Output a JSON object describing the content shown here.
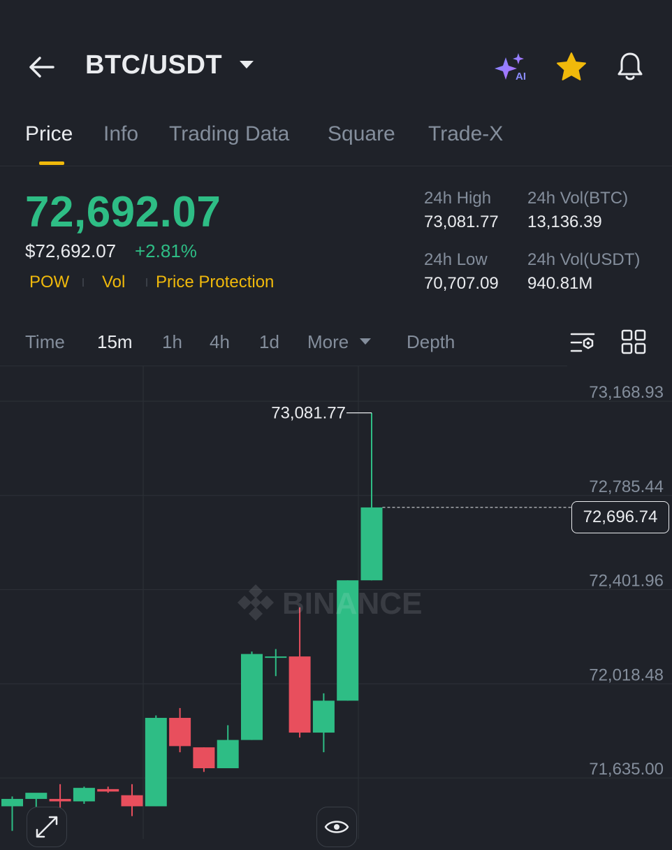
{
  "header": {
    "pair": "BTC/USDT",
    "icons": [
      "back-arrow-icon",
      "ai-sparkle-icon",
      "star-icon",
      "bell-icon"
    ],
    "ai_badge": "AI"
  },
  "tabs": [
    {
      "label": "Price",
      "active": true
    },
    {
      "label": "Info",
      "active": false
    },
    {
      "label": "Trading Data",
      "active": false
    },
    {
      "label": "Square",
      "active": false
    },
    {
      "label": "Trade-X",
      "active": false
    }
  ],
  "price": {
    "last": "72,692.07",
    "usd": "$72,692.07",
    "change": "+2.81%",
    "tags": [
      "POW",
      "Vol",
      "Price Protection"
    ]
  },
  "stats": {
    "high_label": "24h High",
    "high_value": "73,081.77",
    "vol_btc_label": "24h Vol(BTC)",
    "vol_btc_value": "13,136.39",
    "low_label": "24h Low",
    "low_value": "70,707.09",
    "vol_usdt_label": "24h Vol(USDT)",
    "vol_usdt_value": "940.81M"
  },
  "intervals": {
    "time": "Time",
    "m15": "15m",
    "h1": "1h",
    "h4": "4h",
    "d1": "1d",
    "more": "More",
    "depth": "Depth",
    "selected": "15m"
  },
  "colors": {
    "background": "#1f2229",
    "up": "#2ebd85",
    "down": "#e84f5d",
    "accent": "#f0b90b",
    "muted": "#848e9c",
    "text": "#eaecef"
  },
  "chart_data": {
    "type": "candlestick",
    "y_ticks": [
      "73,168.93",
      "72,785.44",
      "72,401.96",
      "72,018.48",
      "71,635.00"
    ],
    "high_marker": "73,081.77",
    "current_price_tag": "72,696.74",
    "watermark": "BINANCE",
    "candles": [
      {
        "open": 71480,
        "high": 71520,
        "low": 71380,
        "close": 71510
      },
      {
        "open": 71510,
        "high": 71530,
        "low": 71460,
        "close": 71535
      },
      {
        "open": 71510,
        "high": 71570,
        "low": 71450,
        "close": 71500
      },
      {
        "open": 71500,
        "high": 71560,
        "low": 71490,
        "close": 71555
      },
      {
        "open": 71550,
        "high": 71560,
        "low": 71535,
        "close": 71540
      },
      {
        "open": 71525,
        "high": 71570,
        "low": 71440,
        "close": 71480
      },
      {
        "open": 71480,
        "high": 71850,
        "low": 71480,
        "close": 71840
      },
      {
        "open": 71840,
        "high": 71880,
        "low": 71700,
        "close": 71725
      },
      {
        "open": 71720,
        "high": 71720,
        "low": 71620,
        "close": 71635
      },
      {
        "open": 71635,
        "high": 71810,
        "low": 71635,
        "close": 71750
      },
      {
        "open": 71750,
        "high": 72110,
        "low": 71750,
        "close": 72100
      },
      {
        "open": 72085,
        "high": 72120,
        "low": 72010,
        "close": 72090
      },
      {
        "open": 72090,
        "high": 72290,
        "low": 71760,
        "close": 71780
      },
      {
        "open": 71780,
        "high": 71940,
        "low": 71700,
        "close": 71910
      },
      {
        "open": 71910,
        "high": 72400,
        "low": 71910,
        "close": 72400
      },
      {
        "open": 72400,
        "high": 73081.77,
        "low": 72400,
        "close": 72696.74
      }
    ]
  }
}
